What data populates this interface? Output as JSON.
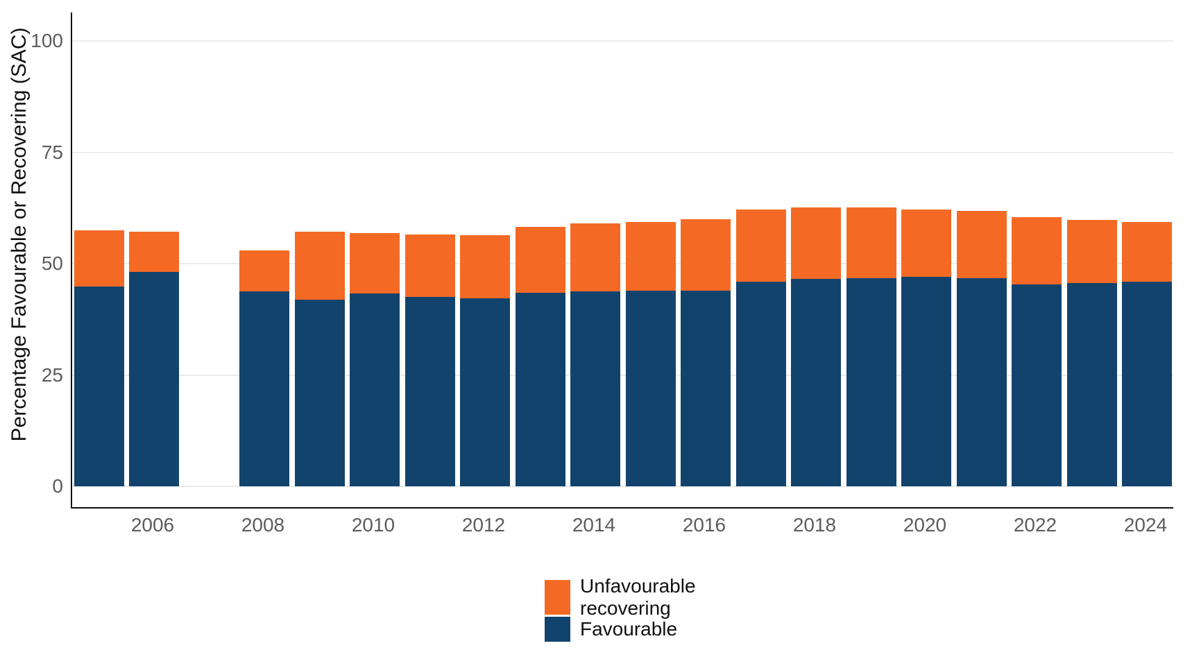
{
  "chart_data": {
    "type": "bar",
    "stacked": true,
    "title": "",
    "xlabel": "",
    "ylabel": "Percentage Favourable or Recovering (SAC)",
    "ylim": [
      0,
      100
    ],
    "y_ticks": [
      0,
      25,
      50,
      75,
      100
    ],
    "x_tick_labels": [
      "2006",
      "2008",
      "2010",
      "2012",
      "2014",
      "2016",
      "2018",
      "2020",
      "2022",
      "2024"
    ],
    "grid": "horizontal-major",
    "legend_position": "bottom-center",
    "missing_years": [
      2007
    ],
    "categories": [
      2005,
      2006,
      2008,
      2009,
      2010,
      2011,
      2012,
      2013,
      2014,
      2015,
      2016,
      2017,
      2018,
      2019,
      2020,
      2021,
      2022,
      2023,
      2024
    ],
    "series": [
      {
        "name": "Favourable",
        "color": "#12436d",
        "values": [
          44.8,
          48.2,
          43.7,
          41.9,
          43.3,
          42.5,
          42.2,
          43.4,
          43.7,
          44.0,
          44.0,
          45.9,
          46.6,
          46.8,
          47.0,
          46.7,
          45.3,
          45.6,
          45.9
        ]
      },
      {
        "name": "Unfavourable recovering",
        "color": "#f46a25",
        "values": [
          12.6,
          9.0,
          9.3,
          15.3,
          13.5,
          14.1,
          14.2,
          14.9,
          15.3,
          15.4,
          16.0,
          16.3,
          16.0,
          15.8,
          15.2,
          15.2,
          15.1,
          14.2,
          13.4
        ]
      }
    ]
  },
  "legend": {
    "items": [
      {
        "name": "unfavourable-recovering",
        "color": "#f46a25",
        "lines": [
          "Unfavourable",
          "recovering"
        ]
      },
      {
        "name": "favourable",
        "color": "#12436d",
        "lines": [
          "Favourable"
        ]
      }
    ]
  },
  "colors": {
    "favourable": "#12436d",
    "unfavourable_recovering": "#f46a25",
    "gridline": "#ebebeb",
    "axis_line": "#0d0d0d",
    "tick_text": "#5c5c5c"
  }
}
